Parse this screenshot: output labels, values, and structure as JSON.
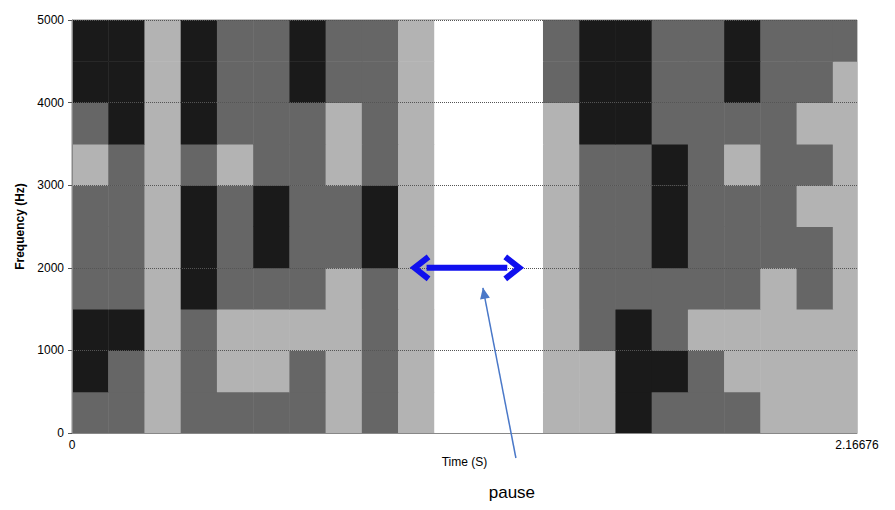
{
  "chart_data": {
    "type": "heatmap",
    "x_label": "Time (S)",
    "y_label": "Frequency (Hz)",
    "xlim": [
      0,
      2.16676
    ],
    "xticks": [
      0,
      2.16676
    ],
    "ylim": [
      0,
      5000
    ],
    "yticks": [
      0,
      1000,
      2000,
      3000,
      4000,
      5000
    ],
    "grid": true,
    "color": "#1a1a1a",
    "zlim": [
      0,
      3
    ],
    "time_bins": [
      0,
      0.1,
      0.2,
      0.3,
      0.4,
      0.5,
      0.6,
      0.7,
      0.8,
      0.9,
      1.0,
      1.1,
      1.2,
      1.3,
      1.4,
      1.5,
      1.6,
      1.7,
      1.8,
      1.9,
      2.0,
      2.1,
      2.16676
    ],
    "freq_bins": [
      0,
      500,
      1000,
      1500,
      2000,
      2500,
      3000,
      3500,
      4000,
      4500,
      5000
    ],
    "cells": [
      [
        2,
        2,
        1,
        2,
        2,
        2,
        2,
        1,
        2,
        1,
        0,
        0,
        0,
        1,
        1,
        3,
        2,
        2,
        2,
        1,
        1,
        1
      ],
      [
        3,
        2,
        1,
        2,
        1,
        1,
        2,
        1,
        2,
        1,
        0,
        0,
        0,
        1,
        1,
        3,
        3,
        2,
        1,
        1,
        1,
        1
      ],
      [
        3,
        3,
        1,
        2,
        1,
        1,
        1,
        1,
        2,
        1,
        0,
        0,
        0,
        1,
        2,
        3,
        2,
        1,
        1,
        1,
        1,
        1
      ],
      [
        2,
        2,
        1,
        3,
        2,
        2,
        2,
        1,
        2,
        1,
        0,
        0,
        0,
        1,
        2,
        2,
        2,
        2,
        2,
        1,
        2,
        1
      ],
      [
        2,
        2,
        1,
        3,
        2,
        3,
        2,
        2,
        3,
        1,
        0,
        0,
        0,
        1,
        2,
        2,
        3,
        2,
        2,
        2,
        2,
        1
      ],
      [
        2,
        2,
        1,
        3,
        2,
        3,
        2,
        2,
        3,
        1,
        0,
        0,
        0,
        1,
        2,
        2,
        3,
        2,
        2,
        2,
        1,
        1
      ],
      [
        1,
        2,
        1,
        2,
        1,
        2,
        2,
        1,
        2,
        1,
        0,
        0,
        0,
        1,
        2,
        2,
        3,
        2,
        1,
        2,
        2,
        1
      ],
      [
        2,
        3,
        1,
        3,
        2,
        2,
        2,
        1,
        2,
        1,
        0,
        0,
        0,
        1,
        3,
        3,
        2,
        2,
        2,
        2,
        1,
        1
      ],
      [
        3,
        3,
        1,
        3,
        2,
        2,
        3,
        2,
        2,
        1,
        0,
        0,
        0,
        2,
        3,
        3,
        2,
        2,
        3,
        2,
        2,
        1
      ],
      [
        3,
        3,
        1,
        3,
        2,
        2,
        3,
        2,
        2,
        1,
        0,
        0,
        0,
        2,
        3,
        3,
        2,
        2,
        3,
        2,
        2,
        2
      ]
    ],
    "annotations": [
      {
        "text": "pause",
        "x_range": [
          0.94,
          1.24
        ],
        "y": 2000
      }
    ]
  }
}
